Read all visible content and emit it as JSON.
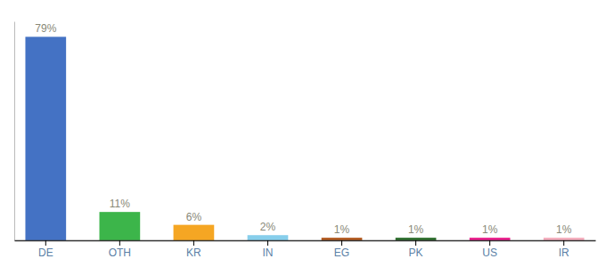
{
  "chart_data": {
    "type": "bar",
    "categories": [
      "DE",
      "OTH",
      "KR",
      "IN",
      "EG",
      "PK",
      "US",
      "IR"
    ],
    "values": [
      79,
      11,
      6,
      2,
      1,
      1,
      1,
      1
    ],
    "value_labels": [
      "79%",
      "11%",
      "6%",
      "2%",
      "1%",
      "1%",
      "1%",
      "1%"
    ],
    "colors": [
      "#4472C4",
      "#3CB54A",
      "#F5A623",
      "#87CEEB",
      "#B35A1F",
      "#2D6E2D",
      "#E91E8C",
      "#F4ACBC"
    ],
    "ylim": [
      0,
      85
    ],
    "data_labels": true,
    "tick_labels": "x",
    "grid": false
  }
}
